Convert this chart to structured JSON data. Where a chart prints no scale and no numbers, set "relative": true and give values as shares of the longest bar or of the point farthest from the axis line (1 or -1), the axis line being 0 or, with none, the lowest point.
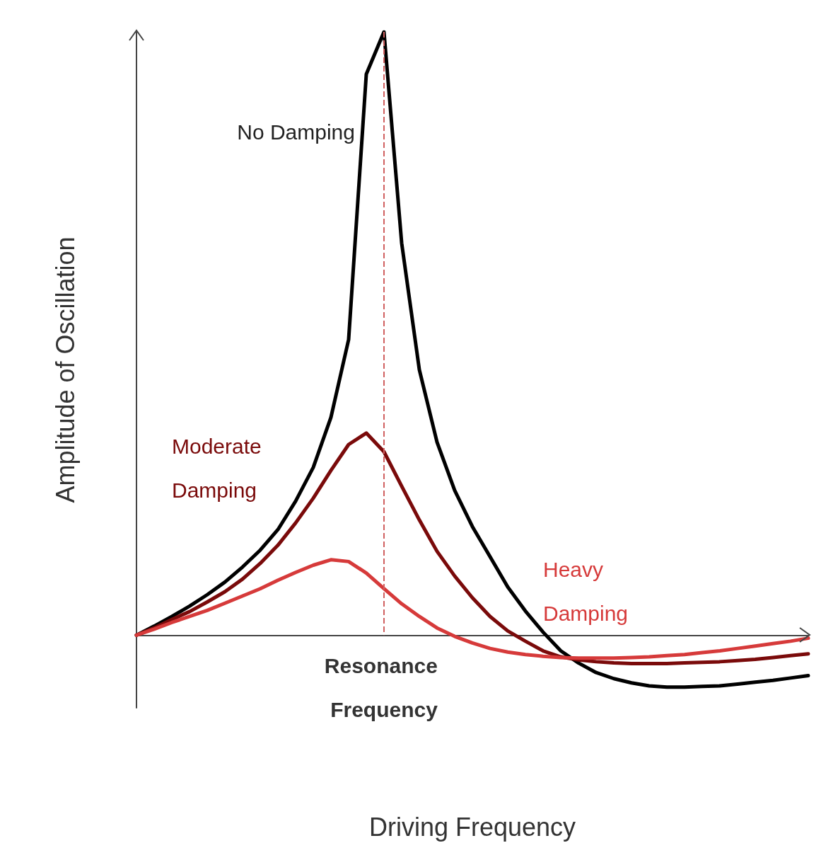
{
  "chart_data": {
    "type": "line",
    "relative": true,
    "xlabel": "Driving Frequency",
    "ylabel": "Amplitude of Oscillation",
    "grid": false,
    "legend": false,
    "marker": "none",
    "line_style": "solid",
    "categories": [
      null,
      null,
      null,
      null,
      null,
      null,
      null,
      null,
      null,
      null,
      null,
      null,
      null,
      null,
      null,
      null,
      null,
      null,
      null,
      null,
      null,
      null,
      null,
      null,
      null,
      null,
      null,
      null,
      null,
      null,
      null,
      null,
      null,
      null,
      null,
      null,
      null,
      null,
      null
    ],
    "series": [
      {
        "name": "No Damping",
        "color": "#000000",
        "values": [
          0,
          0.015,
          0.031,
          0.048,
          0.067,
          0.088,
          0.113,
          0.141,
          0.175,
          0.222,
          0.278,
          0.361,
          0.49,
          0.93,
          1,
          0.65,
          0.44,
          0.32,
          0.24,
          0.18,
          0.13,
          0.08,
          0.04,
          0.005,
          -0.026,
          -0.046,
          -0.062,
          -0.072,
          -0.079,
          -0.084,
          -0.086,
          -0.086,
          -0.085,
          -0.084,
          -0.081,
          -0.078,
          -0.075,
          -0.071,
          -0.067
        ]
      },
      {
        "name": "Moderate Damping",
        "color": "#7a0a0a",
        "values": [
          0,
          0.012,
          0.026,
          0.039,
          0.055,
          0.072,
          0.093,
          0.119,
          0.149,
          0.186,
          0.227,
          0.273,
          0.316,
          0.335,
          0.304,
          0.247,
          0.191,
          0.139,
          0.098,
          0.062,
          0.031,
          0.007,
          -0.01,
          -0.026,
          -0.036,
          -0.041,
          -0.044,
          -0.046,
          -0.047,
          -0.047,
          -0.047,
          -0.046,
          -0.045,
          -0.044,
          -0.042,
          -0.04,
          -0.037,
          -0.034,
          -0.031
        ]
      },
      {
        "name": "Heavy Damping",
        "color": "#d63a3a",
        "values": [
          0,
          0.01,
          0.021,
          0.031,
          0.041,
          0.053,
          0.065,
          0.077,
          0.091,
          0.104,
          0.116,
          0.125,
          0.122,
          0.103,
          0.077,
          0.052,
          0.031,
          0.012,
          -0.002,
          -0.013,
          -0.022,
          -0.028,
          -0.032,
          -0.035,
          -0.037,
          -0.038,
          -0.038,
          -0.038,
          -0.037,
          -0.036,
          -0.034,
          -0.032,
          -0.029,
          -0.026,
          -0.022,
          -0.018,
          -0.014,
          -0.01,
          -0.005
        ]
      }
    ],
    "annotations": [
      "Resonance Frequency"
    ]
  }
}
